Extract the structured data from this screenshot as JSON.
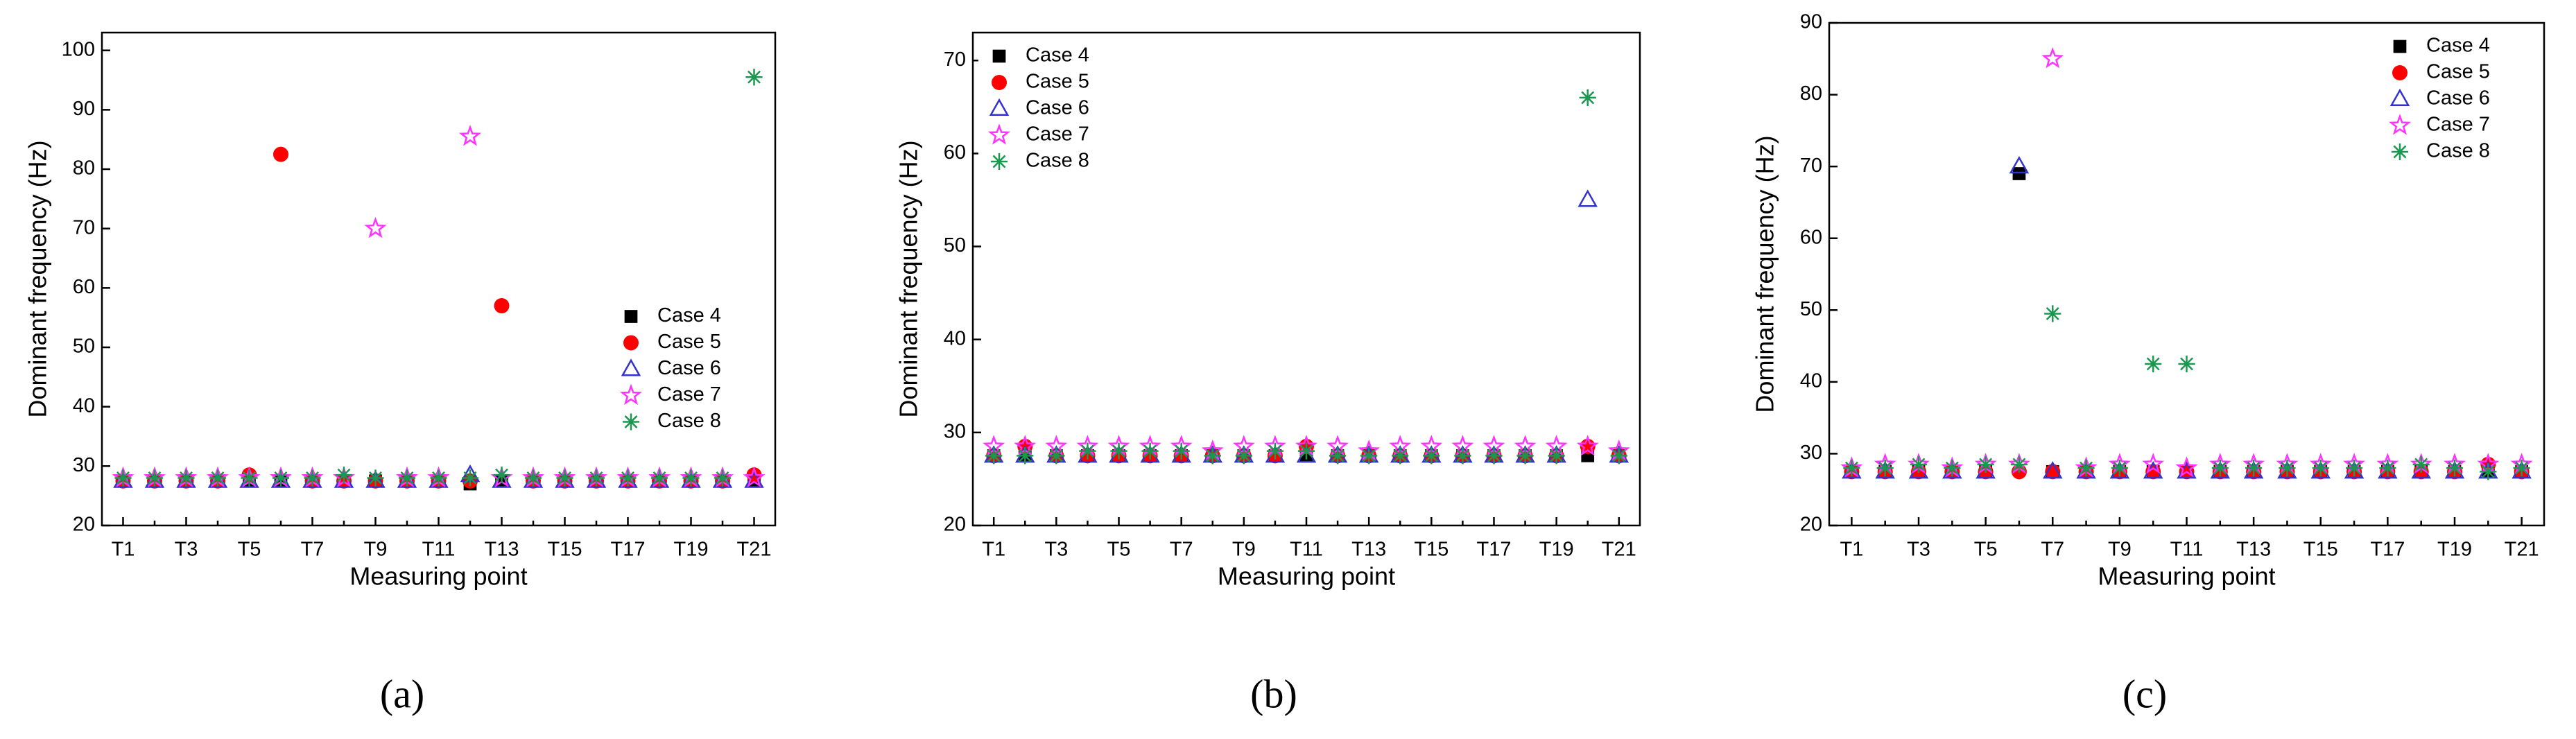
{
  "chart_data": [
    {
      "type": "scatter",
      "caption": "(a)",
      "x_label": "Measuring point",
      "y_label": "Dominant frequency (Hz)",
      "categories": [
        "T1",
        null,
        "T3",
        null,
        "T5",
        null,
        "T7",
        null,
        "T9",
        null,
        "T11",
        null,
        "T13",
        null,
        "T15",
        null,
        "T17",
        null,
        "T19",
        null,
        "T21"
      ],
      "ylim": [
        20,
        103
      ],
      "yticks": [
        20,
        30,
        40,
        50,
        60,
        70,
        80,
        90,
        100
      ],
      "legend": "center right",
      "series": [
        {
          "name": "Case 4",
          "color": "#000000",
          "marker": "square",
          "values": [
            27.5,
            27.5,
            27.5,
            27.5,
            27.5,
            27.5,
            27.5,
            27.5,
            27.5,
            27.5,
            27.5,
            27,
            27.5,
            27.5,
            27.5,
            27.5,
            27.5,
            27.5,
            27.5,
            27.5,
            27.5
          ]
        },
        {
          "name": "Case 5",
          "color": "#ff0000",
          "marker": "circle",
          "values": [
            27.5,
            27.5,
            27.5,
            27.5,
            28.5,
            82.5,
            27.5,
            27.5,
            27.5,
            27.5,
            27.5,
            27.5,
            57,
            27.5,
            27.5,
            27.5,
            27.5,
            27.5,
            27.5,
            27.5,
            28.5
          ]
        },
        {
          "name": "Case 6",
          "color": "#3333cc",
          "marker": "triangle",
          "values": [
            27.5,
            27.5,
            27.5,
            27.5,
            27.5,
            27.5,
            27.5,
            27.5,
            27.5,
            27.5,
            27.5,
            28.5,
            27.5,
            27.5,
            27.5,
            27.5,
            27.5,
            27.5,
            27.5,
            27.5,
            27.5
          ]
        },
        {
          "name": "Case 7",
          "color": "#ff33ff",
          "marker": "star",
          "values": [
            28,
            28,
            28,
            28,
            28,
            28,
            28,
            28,
            70,
            28,
            28,
            85.5,
            28,
            28,
            28,
            28,
            28,
            28,
            28,
            28,
            28
          ]
        },
        {
          "name": "Case 8",
          "color": "#1a9850",
          "marker": "asterisk",
          "values": [
            28,
            28,
            28,
            28,
            28,
            28,
            28,
            28.5,
            28,
            28,
            28,
            28,
            28.5,
            28,
            28,
            28,
            28,
            28,
            28,
            28,
            95.5
          ]
        }
      ]
    },
    {
      "type": "scatter",
      "caption": "(b)",
      "x_label": "Measuring point",
      "y_label": "Dominant frequency (Hz)",
      "categories": [
        "T1",
        null,
        "T3",
        null,
        "T5",
        null,
        "T7",
        null,
        "T9",
        null,
        "T11",
        null,
        "T13",
        null,
        "T15",
        null,
        "T17",
        null,
        "T19",
        null,
        "T21"
      ],
      "ylim": [
        20,
        73
      ],
      "yticks": [
        20,
        30,
        40,
        50,
        60,
        70
      ],
      "legend": "upper left",
      "series": [
        {
          "name": "Case 4",
          "color": "#000000",
          "marker": "square",
          "values": [
            27.5,
            27.5,
            27.5,
            27.5,
            27.5,
            27.5,
            27.5,
            27.5,
            27.5,
            27.5,
            27.5,
            27.5,
            27.5,
            27.5,
            27.5,
            27.5,
            27.5,
            27.5,
            27.5,
            27.5,
            27.5
          ]
        },
        {
          "name": "Case 5",
          "color": "#ff0000",
          "marker": "circle",
          "values": [
            27.5,
            28.5,
            27.5,
            27.5,
            27.5,
            27.5,
            27.5,
            27.5,
            27.5,
            27.5,
            28.5,
            27.5,
            27.5,
            27.5,
            27.5,
            27.5,
            27.5,
            27.5,
            27.5,
            28.5,
            27.5
          ]
        },
        {
          "name": "Case 6",
          "color": "#3333cc",
          "marker": "triangle",
          "values": [
            27.5,
            27.5,
            27.5,
            27.5,
            27.5,
            27.5,
            27.5,
            27.5,
            27.5,
            27.5,
            27.5,
            27.5,
            27.5,
            27.5,
            27.5,
            27.5,
            27.5,
            27.5,
            27.5,
            55,
            27.5
          ]
        },
        {
          "name": "Case 7",
          "color": "#ff33ff",
          "marker": "star",
          "values": [
            28.5,
            28.5,
            28.5,
            28.5,
            28.5,
            28.5,
            28.5,
            28,
            28.5,
            28.5,
            28.5,
            28.5,
            28,
            28.5,
            28.5,
            28.5,
            28.5,
            28.5,
            28.5,
            28.5,
            28
          ]
        },
        {
          "name": "Case 8",
          "color": "#1a9850",
          "marker": "asterisk",
          "values": [
            27.5,
            27.5,
            27.5,
            28,
            28,
            28,
            28,
            27.5,
            27.5,
            28,
            28,
            27.5,
            27.5,
            27.5,
            27.5,
            27.5,
            27.5,
            27.5,
            27.5,
            66,
            27.5
          ]
        }
      ]
    },
    {
      "type": "scatter",
      "caption": "(c)",
      "x_label": "Measuring point",
      "y_label": "Dominant frequency (Hz)",
      "categories": [
        "T1",
        null,
        "T3",
        null,
        "T5",
        null,
        "T7",
        null,
        "T9",
        null,
        "T11",
        null,
        "T13",
        null,
        "T15",
        null,
        "T17",
        null,
        "T19",
        null,
        "T21"
      ],
      "ylim": [
        20,
        90
      ],
      "yticks": [
        20,
        30,
        40,
        50,
        60,
        70,
        80,
        90
      ],
      "legend": "upper right",
      "series": [
        {
          "name": "Case 4",
          "color": "#000000",
          "marker": "square",
          "values": [
            27.5,
            27.5,
            27.5,
            27.5,
            27.5,
            69,
            27.5,
            27.5,
            27.5,
            27.5,
            27.5,
            27.5,
            27.5,
            27.5,
            27.5,
            27.5,
            27.5,
            27.5,
            27.5,
            27.5,
            27.5
          ]
        },
        {
          "name": "Case 5",
          "color": "#ff0000",
          "marker": "circle",
          "values": [
            27.5,
            27.5,
            27.5,
            27.5,
            27.5,
            27.5,
            27.5,
            27.5,
            27.5,
            27.5,
            27.5,
            27.5,
            27.5,
            27.5,
            27.5,
            27.5,
            27.5,
            27.5,
            27.5,
            28.5,
            27.5
          ]
        },
        {
          "name": "Case 6",
          "color": "#3333cc",
          "marker": "triangle",
          "values": [
            27.5,
            27.5,
            27.5,
            27.5,
            27.5,
            70,
            27.5,
            27.5,
            27.5,
            27.5,
            27.5,
            27.5,
            27.5,
            27.5,
            27.5,
            27.5,
            27.5,
            27.5,
            27.5,
            27.5,
            27.5
          ]
        },
        {
          "name": "Case 7",
          "color": "#ff33ff",
          "marker": "star",
          "values": [
            28,
            28.5,
            28.5,
            28,
            28.5,
            28.5,
            85,
            28,
            28.5,
            28.5,
            28,
            28.5,
            28.5,
            28.5,
            28.5,
            28.5,
            28.5,
            28.5,
            28.5,
            28.5,
            28.5
          ]
        },
        {
          "name": "Case 8",
          "color": "#1a9850",
          "marker": "asterisk",
          "values": [
            28,
            28,
            28.5,
            28,
            28.5,
            28.5,
            49.5,
            28,
            28,
            42.5,
            42.5,
            28,
            28,
            28,
            28,
            28,
            28,
            28.5,
            28,
            27.5,
            28
          ]
        }
      ]
    }
  ]
}
